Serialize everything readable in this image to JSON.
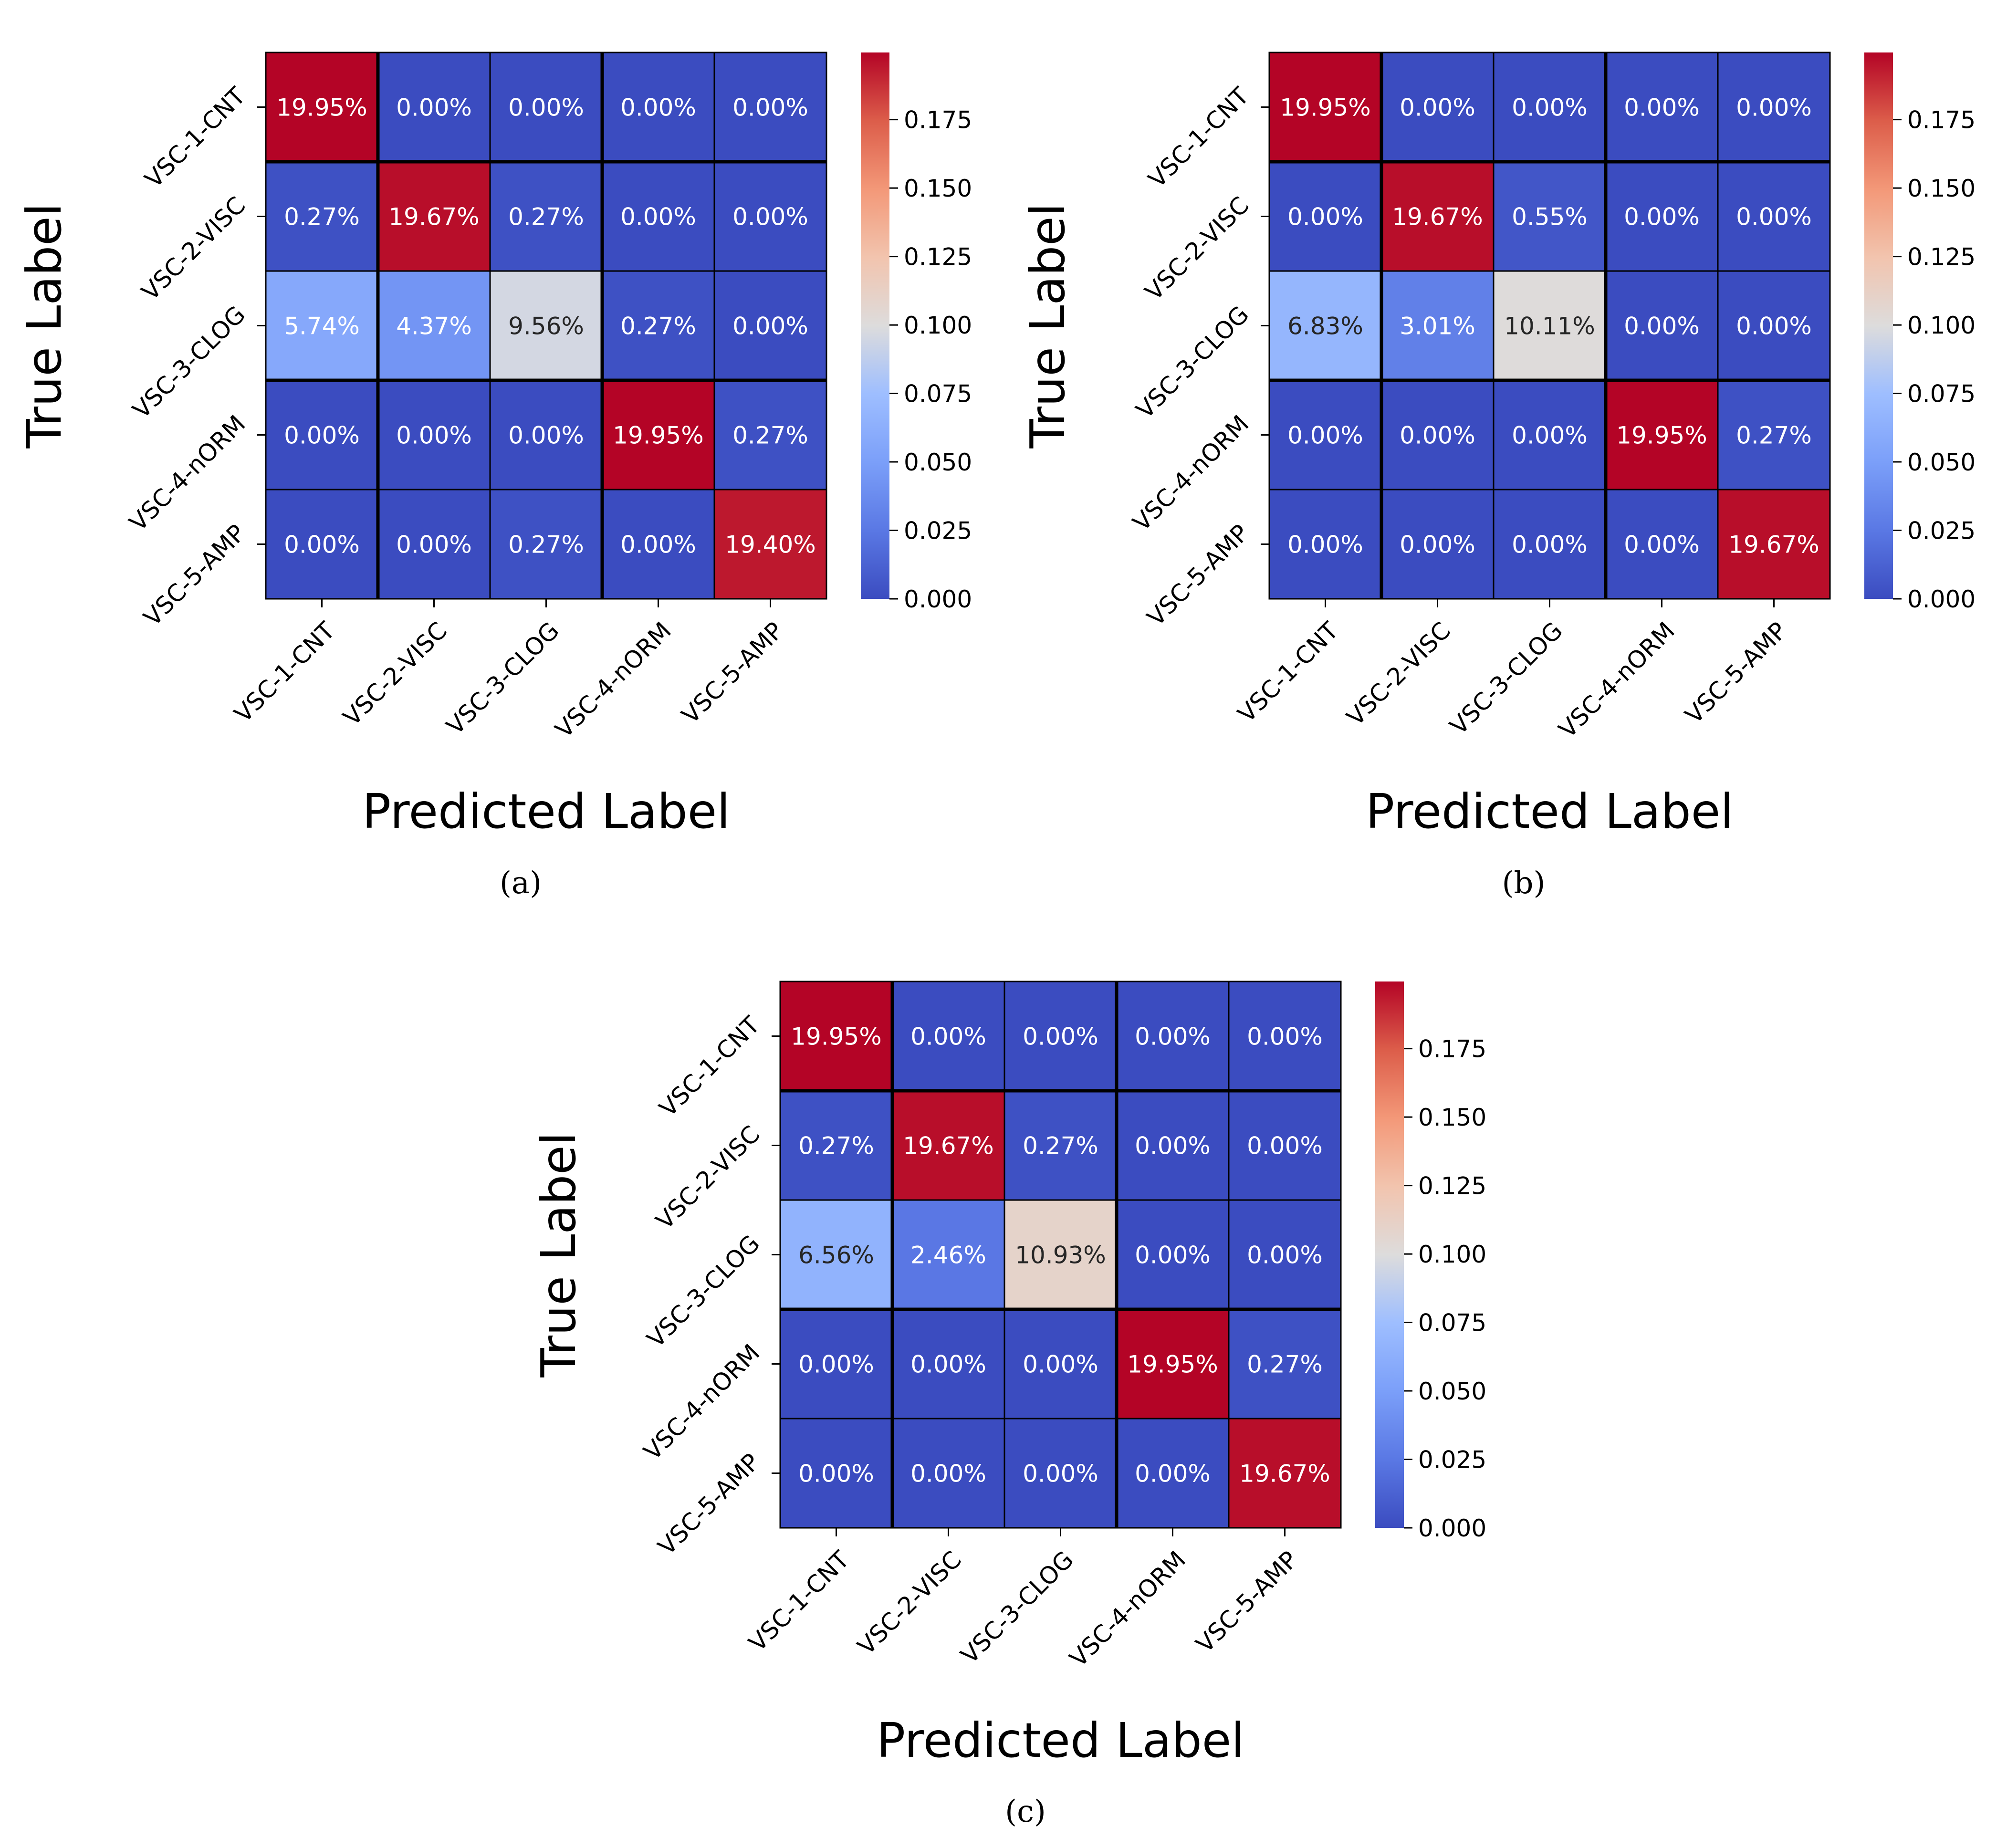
{
  "figure": {
    "chart_data": [
      {
        "type": "heatmap",
        "caption": "(a)",
        "xlabel": "Predicted Label",
        "ylabel": "True Label",
        "row_labels": [
          "VSC-1-CNT",
          "VSC-2-VISC",
          "VSC-3-CLOG",
          "VSC-4-nORM",
          "VSC-5-AMP"
        ],
        "col_labels": [
          "VSC-1-CNT",
          "VSC-2-VISC",
          "VSC-3-CLOG",
          "VSC-4-nORM",
          "VSC-5-AMP"
        ],
        "values": [
          [
            0.1995,
            0.0,
            0.0,
            0.0,
            0.0
          ],
          [
            0.0027,
            0.1967,
            0.0027,
            0.0,
            0.0
          ],
          [
            0.0574,
            0.0437,
            0.0956,
            0.0027,
            0.0
          ],
          [
            0.0,
            0.0,
            0.0,
            0.1995,
            0.0027
          ],
          [
            0.0,
            0.0,
            0.0027,
            0.0,
            0.194
          ]
        ],
        "cell_text": [
          [
            "19.95%",
            "0.00%",
            "0.00%",
            "0.00%",
            "0.00%"
          ],
          [
            "0.27%",
            "19.67%",
            "0.27%",
            "0.00%",
            "0.00%"
          ],
          [
            "5.74%",
            "4.37%",
            "9.56%",
            "0.27%",
            "0.00%"
          ],
          [
            "0.00%",
            "0.00%",
            "0.00%",
            "19.95%",
            "0.27%"
          ],
          [
            "0.00%",
            "0.00%",
            "0.27%",
            "0.00%",
            "19.40%"
          ]
        ],
        "colorbar": {
          "min": 0.0,
          "max": 0.1995,
          "colormap": "coolwarm",
          "ticks": [
            0.0,
            0.025,
            0.05,
            0.075,
            0.1,
            0.125,
            0.15,
            0.175
          ],
          "tick_labels": [
            "0.000",
            "0.025",
            "0.050",
            "0.075",
            "0.100",
            "0.125",
            "0.150",
            "0.175"
          ]
        }
      },
      {
        "type": "heatmap",
        "caption": "(b)",
        "xlabel": "Predicted Label",
        "ylabel": "True Label",
        "row_labels": [
          "VSC-1-CNT",
          "VSC-2-VISC",
          "VSC-3-CLOG",
          "VSC-4-nORM",
          "VSC-5-AMP"
        ],
        "col_labels": [
          "VSC-1-CNT",
          "VSC-2-VISC",
          "VSC-3-CLOG",
          "VSC-4-nORM",
          "VSC-5-AMP"
        ],
        "values": [
          [
            0.1995,
            0.0,
            0.0,
            0.0,
            0.0
          ],
          [
            0.0,
            0.1967,
            0.0055,
            0.0,
            0.0
          ],
          [
            0.0683,
            0.0301,
            0.1011,
            0.0,
            0.0
          ],
          [
            0.0,
            0.0,
            0.0,
            0.1995,
            0.0027
          ],
          [
            0.0,
            0.0,
            0.0,
            0.0,
            0.1967
          ]
        ],
        "cell_text": [
          [
            "19.95%",
            "0.00%",
            "0.00%",
            "0.00%",
            "0.00%"
          ],
          [
            "0.00%",
            "19.67%",
            "0.55%",
            "0.00%",
            "0.00%"
          ],
          [
            "6.83%",
            "3.01%",
            "10.11%",
            "0.00%",
            "0.00%"
          ],
          [
            "0.00%",
            "0.00%",
            "0.00%",
            "19.95%",
            "0.27%"
          ],
          [
            "0.00%",
            "0.00%",
            "0.00%",
            "0.00%",
            "19.67%"
          ]
        ],
        "colorbar": {
          "min": 0.0,
          "max": 0.1995,
          "colormap": "coolwarm",
          "ticks": [
            0.0,
            0.025,
            0.05,
            0.075,
            0.1,
            0.125,
            0.15,
            0.175
          ],
          "tick_labels": [
            "0.000",
            "0.025",
            "0.050",
            "0.075",
            "0.100",
            "0.125",
            "0.150",
            "0.175"
          ]
        }
      },
      {
        "type": "heatmap",
        "caption": "(c)",
        "xlabel": "Predicted Label",
        "ylabel": "True Label",
        "row_labels": [
          "VSC-1-CNT",
          "VSC-2-VISC",
          "VSC-3-CLOG",
          "VSC-4-nORM",
          "VSC-5-AMP"
        ],
        "col_labels": [
          "VSC-1-CNT",
          "VSC-2-VISC",
          "VSC-3-CLOG",
          "VSC-4-nORM",
          "VSC-5-AMP"
        ],
        "values": [
          [
            0.1995,
            0.0,
            0.0,
            0.0,
            0.0
          ],
          [
            0.0027,
            0.1967,
            0.0027,
            0.0,
            0.0
          ],
          [
            0.0656,
            0.0246,
            0.1093,
            0.0,
            0.0
          ],
          [
            0.0,
            0.0,
            0.0,
            0.1995,
            0.0027
          ],
          [
            0.0,
            0.0,
            0.0,
            0.0,
            0.1967
          ]
        ],
        "cell_text": [
          [
            "19.95%",
            "0.00%",
            "0.00%",
            "0.00%",
            "0.00%"
          ],
          [
            "0.27%",
            "19.67%",
            "0.27%",
            "0.00%",
            "0.00%"
          ],
          [
            "6.56%",
            "2.46%",
            "10.93%",
            "0.00%",
            "0.00%"
          ],
          [
            "0.00%",
            "0.00%",
            "0.00%",
            "19.95%",
            "0.27%"
          ],
          [
            "0.00%",
            "0.00%",
            "0.00%",
            "0.00%",
            "19.67%"
          ]
        ],
        "colorbar": {
          "min": 0.0,
          "max": 0.1995,
          "colormap": "coolwarm",
          "ticks": [
            0.0,
            0.025,
            0.05,
            0.075,
            0.1,
            0.125,
            0.15,
            0.175
          ],
          "tick_labels": [
            "0.000",
            "0.025",
            "0.050",
            "0.075",
            "0.100",
            "0.125",
            "0.150",
            "0.175"
          ]
        }
      }
    ]
  }
}
